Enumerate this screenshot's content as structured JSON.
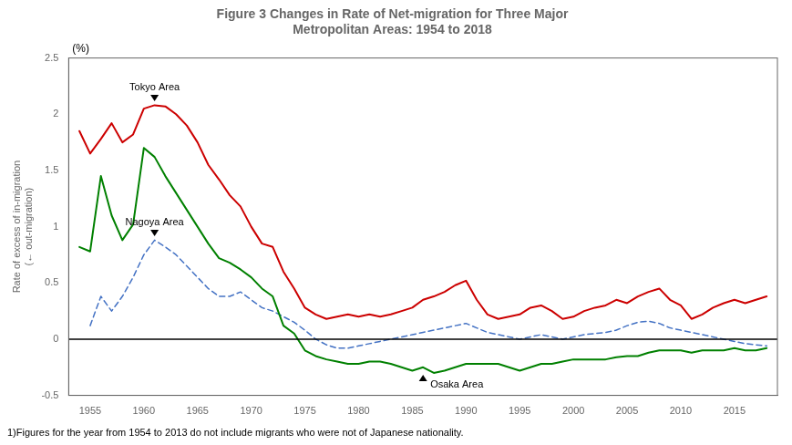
{
  "chart_data": {
    "type": "line",
    "title": "Figure 3 Changes in Rate of Net-migration for Three Major\nMetropolitan Areas: 1954 to 2018",
    "ylabel": "Rate of excess of in-migration\n(← out-migration)",
    "unit_label": "(%)",
    "footnote": "1)Figures for the year from 1954 to 2013 do not include migrants who were not of Japanese nationality.",
    "xlim": [
      1953,
      2019
    ],
    "ylim": [
      -0.5,
      2.5
    ],
    "xticks": [
      1955,
      1960,
      1965,
      1970,
      1975,
      1980,
      1985,
      1990,
      1995,
      2000,
      2005,
      2010,
      2015
    ],
    "yticks": [
      -0.5,
      0,
      0.5,
      1,
      1.5,
      2,
      2.5
    ],
    "grid": false,
    "hlines": [
      0
    ],
    "series": [
      {
        "name": "Tokyo Area",
        "color": "#cc0000",
        "line_style": "solid",
        "x": [
          1954,
          1955,
          1956,
          1957,
          1958,
          1959,
          1960,
          1961,
          1962,
          1963,
          1964,
          1965,
          1966,
          1967,
          1968,
          1969,
          1970,
          1971,
          1972,
          1973,
          1974,
          1975,
          1976,
          1977,
          1978,
          1979,
          1980,
          1981,
          1982,
          1983,
          1984,
          1985,
          1986,
          1987,
          1988,
          1989,
          1990,
          1991,
          1992,
          1993,
          1994,
          1995,
          1996,
          1997,
          1998,
          1999,
          2000,
          2001,
          2002,
          2003,
          2004,
          2005,
          2006,
          2007,
          2008,
          2009,
          2010,
          2011,
          2012,
          2013,
          2014,
          2015,
          2016,
          2017,
          2018
        ],
        "values": [
          1.85,
          1.65,
          1.78,
          1.92,
          1.75,
          1.82,
          2.05,
          2.08,
          2.07,
          2.0,
          1.9,
          1.75,
          1.55,
          1.42,
          1.28,
          1.18,
          1.0,
          0.85,
          0.82,
          0.6,
          0.45,
          0.28,
          0.22,
          0.18,
          0.2,
          0.22,
          0.2,
          0.22,
          0.2,
          0.22,
          0.25,
          0.28,
          0.35,
          0.38,
          0.42,
          0.48,
          0.52,
          0.35,
          0.22,
          0.18,
          0.2,
          0.22,
          0.28,
          0.3,
          0.25,
          0.18,
          0.2,
          0.25,
          0.28,
          0.3,
          0.35,
          0.32,
          0.38,
          0.42,
          0.45,
          0.35,
          0.3,
          0.18,
          0.22,
          0.28,
          0.32,
          0.35,
          0.32,
          0.35,
          0.38
        ],
        "annotation": {
          "text": "Tokyo Area",
          "x": 1961,
          "y": 2.08,
          "marker": "triangle_down"
        }
      },
      {
        "name": "Osaka Area",
        "color": "#008000",
        "line_style": "solid",
        "x": [
          1954,
          1955,
          1956,
          1957,
          1958,
          1959,
          1960,
          1961,
          1962,
          1963,
          1964,
          1965,
          1966,
          1967,
          1968,
          1969,
          1970,
          1971,
          1972,
          1973,
          1974,
          1975,
          1976,
          1977,
          1978,
          1979,
          1980,
          1981,
          1982,
          1983,
          1984,
          1985,
          1986,
          1987,
          1988,
          1989,
          1990,
          1991,
          1992,
          1993,
          1994,
          1995,
          1996,
          1997,
          1998,
          1999,
          2000,
          2001,
          2002,
          2003,
          2004,
          2005,
          2006,
          2007,
          2008,
          2009,
          2010,
          2011,
          2012,
          2013,
          2014,
          2015,
          2016,
          2017,
          2018
        ],
        "values": [
          0.82,
          0.78,
          1.45,
          1.1,
          0.88,
          1.02,
          1.7,
          1.62,
          1.45,
          1.3,
          1.15,
          1.0,
          0.85,
          0.72,
          0.68,
          0.62,
          0.55,
          0.45,
          0.38,
          0.12,
          0.05,
          -0.1,
          -0.15,
          -0.18,
          -0.2,
          -0.22,
          -0.22,
          -0.2,
          -0.2,
          -0.22,
          -0.25,
          -0.28,
          -0.25,
          -0.3,
          -0.28,
          -0.25,
          -0.22,
          -0.22,
          -0.22,
          -0.22,
          -0.25,
          -0.28,
          -0.25,
          -0.22,
          -0.22,
          -0.2,
          -0.18,
          -0.18,
          -0.18,
          -0.18,
          -0.16,
          -0.15,
          -0.15,
          -0.12,
          -0.1,
          -0.1,
          -0.1,
          -0.12,
          -0.1,
          -0.1,
          -0.1,
          -0.08,
          -0.1,
          -0.1,
          -0.08
        ],
        "annotation": {
          "text": "Osaka Area",
          "x": 1986,
          "y": -0.28,
          "marker": "triangle_up"
        }
      },
      {
        "name": "Nagoya Area",
        "color": "#4472C4",
        "line_style": "dashed",
        "x": [
          1955,
          1956,
          1957,
          1958,
          1959,
          1960,
          1961,
          1962,
          1963,
          1964,
          1965,
          1966,
          1967,
          1968,
          1969,
          1970,
          1971,
          1972,
          1973,
          1974,
          1975,
          1976,
          1977,
          1978,
          1979,
          1980,
          1981,
          1982,
          1983,
          1984,
          1985,
          1986,
          1987,
          1988,
          1989,
          1990,
          1991,
          1992,
          1993,
          1994,
          1995,
          1996,
          1997,
          1998,
          1999,
          2000,
          2001,
          2002,
          2003,
          2004,
          2005,
          2006,
          2007,
          2008,
          2009,
          2010,
          2011,
          2012,
          2013,
          2014,
          2015,
          2016,
          2017,
          2018
        ],
        "values": [
          0.12,
          0.38,
          0.25,
          0.38,
          0.55,
          0.75,
          0.88,
          0.82,
          0.75,
          0.65,
          0.55,
          0.45,
          0.38,
          0.38,
          0.42,
          0.35,
          0.28,
          0.25,
          0.2,
          0.15,
          0.08,
          0.0,
          -0.05,
          -0.08,
          -0.08,
          -0.06,
          -0.04,
          -0.02,
          0.0,
          0.02,
          0.04,
          0.06,
          0.08,
          0.1,
          0.12,
          0.14,
          0.1,
          0.06,
          0.04,
          0.02,
          0.0,
          0.02,
          0.04,
          0.02,
          0.0,
          0.02,
          0.04,
          0.05,
          0.06,
          0.08,
          0.12,
          0.15,
          0.16,
          0.14,
          0.1,
          0.08,
          0.06,
          0.04,
          0.02,
          0.0,
          -0.02,
          -0.04,
          -0.05,
          -0.06
        ],
        "annotation": {
          "text": "Nagoya Area",
          "x": 1961,
          "y": 0.88,
          "marker": "triangle_down"
        }
      }
    ]
  }
}
